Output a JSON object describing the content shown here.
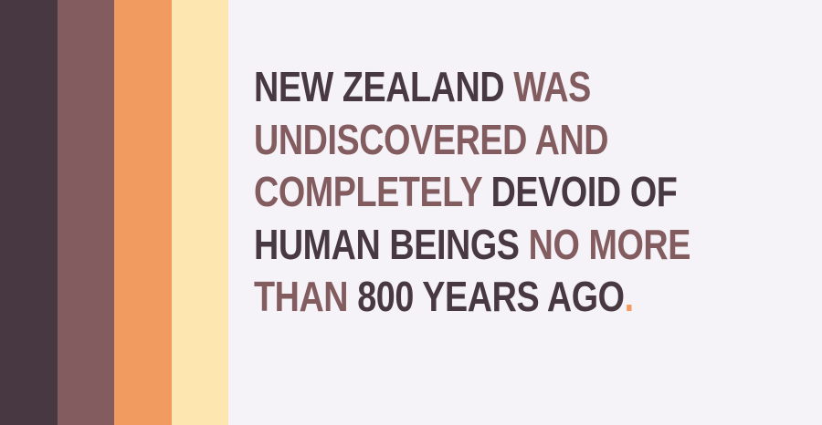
{
  "palette": {
    "background": "#f5f2f8",
    "dark": "#483842",
    "mauve": "#825c5f",
    "orange": "#f19b60",
    "cream": "#fde6b0"
  },
  "stripes": [
    {
      "name": "stripe-dark-plum",
      "color": "#483842"
    },
    {
      "name": "stripe-mauve",
      "color": "#825c5f"
    },
    {
      "name": "stripe-orange",
      "color": "#f19b60"
    },
    {
      "name": "stripe-cream",
      "color": "#fde6b0"
    }
  ],
  "fact": {
    "lines": [
      [
        {
          "text": "NEW ZEALAND ",
          "tone": "dark"
        },
        {
          "text": "WAS",
          "tone": "mauve"
        }
      ],
      [
        {
          "text": "UNDISCOVERED AND",
          "tone": "mauve"
        }
      ],
      [
        {
          "text": "COMPLETELY ",
          "tone": "mauve"
        },
        {
          "text": "DEVOID OF",
          "tone": "dark"
        }
      ],
      [
        {
          "text": "HUMAN BEINGS ",
          "tone": "dark"
        },
        {
          "text": "NO MORE",
          "tone": "mauve"
        }
      ],
      [
        {
          "text": "THAN ",
          "tone": "mauve"
        },
        {
          "text": "800 YEARS AGO",
          "tone": "dark"
        },
        {
          "text": ".",
          "tone": "orange"
        }
      ]
    ]
  }
}
